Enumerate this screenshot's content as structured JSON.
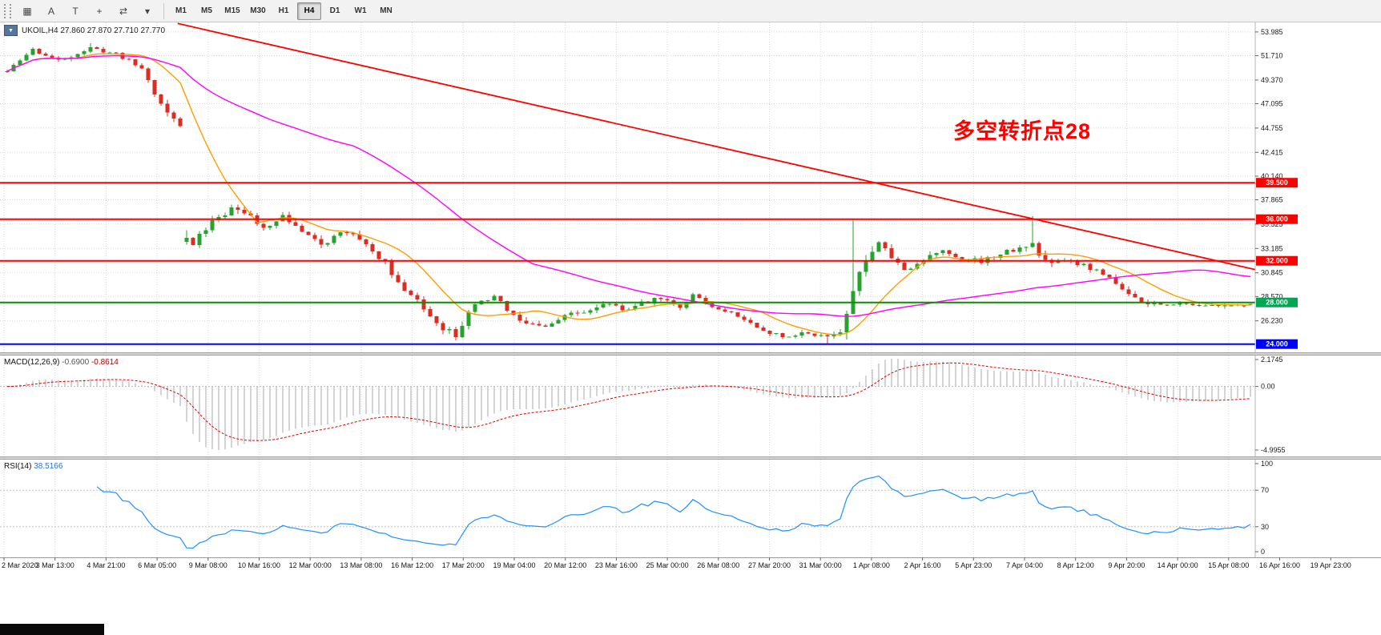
{
  "toolbar": {
    "icons": [
      {
        "name": "chart-grid-icon",
        "glyph": "▦"
      },
      {
        "name": "annotate-a-tool",
        "glyph": "A"
      },
      {
        "name": "text-tool",
        "glyph": "T"
      },
      {
        "name": "crosshair-tool",
        "glyph": "+"
      },
      {
        "name": "symbol-cycle-tool",
        "glyph": "⇄"
      },
      {
        "name": "tool-caret-icon",
        "glyph": "▾"
      }
    ],
    "timeframes": [
      "M1",
      "M5",
      "M15",
      "M30",
      "H1",
      "H4",
      "D1",
      "W1",
      "MN"
    ],
    "active_timeframe": "H4"
  },
  "chart": {
    "symbol_readout_text": "UKOIL,H4  27.860 27.870 27.710 27.770",
    "annotation": {
      "text": "多空转折点28",
      "color": "#ff0000"
    },
    "price_ticks": [
      "53.985",
      "51.710",
      "49.370",
      "47.095",
      "44.755",
      "42.415",
      "40.140",
      "37.865",
      "35.525",
      "33.185",
      "30.845",
      "28.570",
      "26.230"
    ],
    "hlines": [
      {
        "price": 39.5,
        "label": "39.500",
        "color": "#ff0000",
        "badge": "#ff0000"
      },
      {
        "price": 36.0,
        "label": "36.000",
        "color": "#ff0000",
        "badge": "#ff0000"
      },
      {
        "price": 32.0,
        "label": "32.000",
        "color": "#ff0000",
        "badge": "#ff0000"
      },
      {
        "price": 28.0,
        "label": "28.000",
        "color": "#089000",
        "badge": "#00a651"
      },
      {
        "price": 24.0,
        "label": "24.000",
        "color": "#0000ff",
        "badge": "#0000ff"
      }
    ],
    "trendline": {
      "from_bar": 26.6,
      "from_price": 54.8,
      "to_bar": 194.8,
      "to_price": 31.15,
      "color": "#ff0000"
    }
  },
  "chart_data": {
    "type": "candlestick",
    "symbol": "UKOIL",
    "timeframe": "H4",
    "ohlc_current": {
      "open": 27.86,
      "high": 27.87,
      "low": 27.71,
      "close": 27.77
    },
    "visible_price_range": [
      23.2,
      54.9
    ],
    "bars_total": 195,
    "gap_threshold": 6,
    "price_waypoints": [
      [
        0,
        50.2,
        0.45
      ],
      [
        4,
        52.3,
        0.5
      ],
      [
        8,
        51.2,
        0.45
      ],
      [
        13,
        52.4,
        0.45
      ],
      [
        17,
        51.9,
        0.4
      ],
      [
        21,
        50.5,
        0.5
      ],
      [
        24,
        47.0,
        0.9
      ],
      [
        27,
        44.9,
        0.7
      ],
      [
        28,
        34.2,
        1.6
      ],
      [
        29,
        33.6,
        1.2
      ],
      [
        31,
        35.2,
        0.9
      ],
      [
        34,
        36.6,
        0.8
      ],
      [
        36,
        37.1,
        0.8
      ],
      [
        38,
        36.2,
        0.8
      ],
      [
        40,
        35.1,
        0.7
      ],
      [
        43,
        36.2,
        0.7
      ],
      [
        46,
        34.8,
        0.7
      ],
      [
        49,
        33.4,
        0.7
      ],
      [
        52,
        35.0,
        0.8
      ],
      [
        54,
        34.6,
        0.7
      ],
      [
        56,
        33.6,
        0.7
      ],
      [
        59,
        31.8,
        0.7
      ],
      [
        61,
        29.8,
        0.8
      ],
      [
        63,
        28.9,
        0.7
      ],
      [
        65,
        27.3,
        0.8
      ],
      [
        68,
        25.6,
        0.8
      ],
      [
        70,
        24.9,
        0.8
      ],
      [
        72,
        26.9,
        0.8
      ],
      [
        74,
        28.2,
        0.7
      ],
      [
        76,
        28.6,
        0.6
      ],
      [
        78,
        27.3,
        0.6
      ],
      [
        81,
        26.0,
        0.7
      ],
      [
        84,
        25.7,
        0.7
      ],
      [
        87,
        26.9,
        0.6
      ],
      [
        90,
        27.1,
        0.6
      ],
      [
        93,
        28.0,
        0.6
      ],
      [
        96,
        27.3,
        0.5
      ],
      [
        99,
        27.9,
        0.6
      ],
      [
        102,
        28.4,
        0.6
      ],
      [
        105,
        27.5,
        0.5
      ],
      [
        107,
        28.7,
        0.6
      ],
      [
        110,
        27.7,
        0.5
      ],
      [
        113,
        26.9,
        0.5
      ],
      [
        116,
        26.0,
        0.5
      ],
      [
        119,
        25.1,
        0.5
      ],
      [
        122,
        24.7,
        0.5
      ],
      [
        124,
        25.3,
        0.5
      ],
      [
        126,
        24.9,
        0.5
      ],
      [
        128,
        24.6,
        0.6
      ],
      [
        130,
        25.2,
        0.9
      ],
      [
        131,
        27.0,
        1.4
      ],
      [
        132,
        29.3,
        1.6
      ],
      [
        134,
        32.3,
        1.2
      ],
      [
        136,
        33.9,
        1.0
      ],
      [
        138,
        32.0,
        0.9
      ],
      [
        140,
        31.2,
        0.8
      ],
      [
        143,
        32.1,
        0.7
      ],
      [
        146,
        33.1,
        0.7
      ],
      [
        149,
        32.2,
        0.7
      ],
      [
        152,
        31.9,
        0.7
      ],
      [
        155,
        32.7,
        0.7
      ],
      [
        158,
        33.2,
        0.7
      ],
      [
        160,
        33.4,
        1.0
      ],
      [
        162,
        31.9,
        0.9
      ],
      [
        165,
        32.0,
        0.7
      ],
      [
        168,
        31.6,
        0.6
      ],
      [
        171,
        30.7,
        0.6
      ],
      [
        174,
        29.5,
        0.7
      ],
      [
        177,
        28.2,
        0.7
      ],
      [
        180,
        27.7,
        0.5
      ],
      [
        183,
        27.9,
        0.5
      ],
      [
        186,
        27.6,
        0.5
      ],
      [
        189,
        27.8,
        0.5
      ],
      [
        192,
        27.7,
        0.5
      ],
      [
        194,
        27.8,
        0.4
      ]
    ],
    "spikes": [
      {
        "bar": 13,
        "high": 52.9
      },
      {
        "bar": 70,
        "low": 24.35
      },
      {
        "bar": 128,
        "low": 23.95
      },
      {
        "bar": 132,
        "high": 35.95
      },
      {
        "bar": 160,
        "high": 36.3
      }
    ],
    "moving_averages": [
      {
        "name": "ma-fast",
        "period": 12,
        "color": "#ff9c00"
      },
      {
        "name": "ma-slow",
        "period": 55,
        "color": "#ff00ff"
      }
    ],
    "indicators": [
      {
        "name": "MACD",
        "params": [
          12,
          26,
          9
        ],
        "current": [
          -0.69,
          -0.8614
        ],
        "scale": [
          2.1745,
          0,
          -4.9955
        ]
      },
      {
        "name": "RSI",
        "params": [
          14
        ],
        "current": 38.5166,
        "scale": [
          100,
          70,
          30,
          0
        ],
        "levels": [
          70,
          30
        ]
      }
    ]
  },
  "macd_panel": {
    "label": "MACD(12,26,9)",
    "value_main": "-0.6900",
    "value_signal": "-0.8614",
    "scale_labels": [
      "2.1745",
      "0.00",
      "-4.9955"
    ]
  },
  "rsi_panel": {
    "label": "RSI(14)",
    "value": "38.5166",
    "scale_labels": [
      "100",
      "70",
      "30",
      "0"
    ]
  },
  "time_axis": {
    "labels": [
      "2 Mar 2020",
      "3 Mar 13:00",
      "4 Mar 21:00",
      "6 Mar 05:00",
      "9 Mar 08:00",
      "10 Mar 16:00",
      "12 Mar 00:00",
      "13 Mar 08:00",
      "16 Mar 12:00",
      "17 Mar 20:00",
      "19 Mar 04:00",
      "20 Mar 12:00",
      "23 Mar 16:00",
      "25 Mar 00:00",
      "26 Mar 08:00",
      "27 Mar 20:00",
      "31 Mar 00:00",
      "1 Apr 08:00",
      "2 Apr 16:00",
      "5 Apr 23:00",
      "7 Apr 04:00",
      "8 Apr 12:00",
      "9 Apr 20:00",
      "14 Apr 00:00",
      "15 Apr 08:00",
      "16 Apr 16:00",
      "19 Apr 23:00"
    ]
  },
  "colors": {
    "up": "#26a32c",
    "down": "#dd2c22",
    "ma_fast": "#ff9c00",
    "ma_slow": "#ff00ff",
    "line_red": "#ff0000",
    "grid": "#d9d9d9",
    "macd_hist": "#aaaaaa",
    "macd_signal": "#e00000",
    "rsi_line": "#1e90ff",
    "scale_text": "#1a1a1a"
  }
}
